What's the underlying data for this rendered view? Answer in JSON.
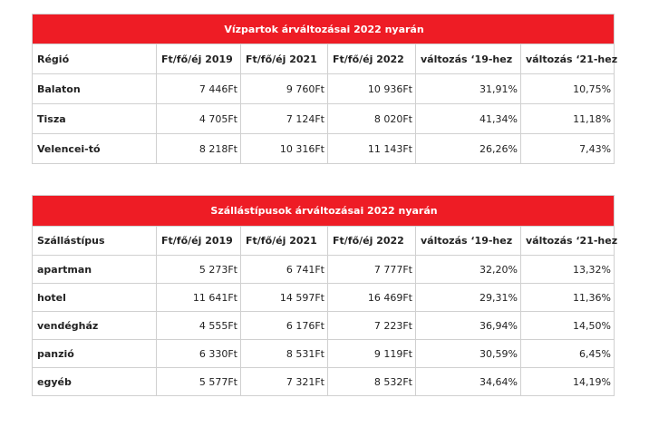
{
  "table1": {
    "title": "Vízpartok árváltozásai 2022 nyarán",
    "headers": [
      "Régió",
      "Ft/fő/éj 2019",
      "Ft/fő/éj 2021",
      "Ft/fő/éj 2022",
      "változás ‘19-hez",
      "változás ‘21-hez"
    ],
    "rows": [
      [
        "Balaton",
        "7 446Ft",
        "9 760Ft",
        "10 936Ft",
        "31,91%",
        "10,75%"
      ],
      [
        "Tisza",
        "4 705Ft",
        "7 124Ft",
        "8 020Ft",
        "41,34%",
        "11,18%"
      ],
      [
        "Velencei-tó",
        "8 218Ft",
        "10 316Ft",
        "11 143Ft",
        "26,26%",
        "7,43%"
      ]
    ]
  },
  "table2": {
    "title": "Szállástípusok árváltozásai 2022 nyarán",
    "headers": [
      "Szállástípus",
      "Ft/fő/éj 2019",
      "Ft/fő/éj 2021",
      "Ft/fő/éj 2022",
      "változás ‘19-hez",
      "változás ‘21-hez"
    ],
    "rows": [
      [
        "apartman",
        "5 273Ft",
        "6 741Ft",
        "7 777Ft",
        "32,20%",
        "13,32%"
      ],
      [
        "hotel",
        "11 641Ft",
        "14 597Ft",
        "16 469Ft",
        "29,31%",
        "11,36%"
      ],
      [
        "vendégház",
        "4 555Ft",
        "6 176Ft",
        "7 223Ft",
        "36,94%",
        "14,50%"
      ],
      [
        "panzió",
        "6 330Ft",
        "8 531Ft",
        "9 119Ft",
        "30,59%",
        "6,45%"
      ],
      [
        "egyéb",
        "5 577Ft",
        "7 321Ft",
        "8 532Ft",
        "34,64%",
        "14,19%"
      ]
    ]
  }
}
